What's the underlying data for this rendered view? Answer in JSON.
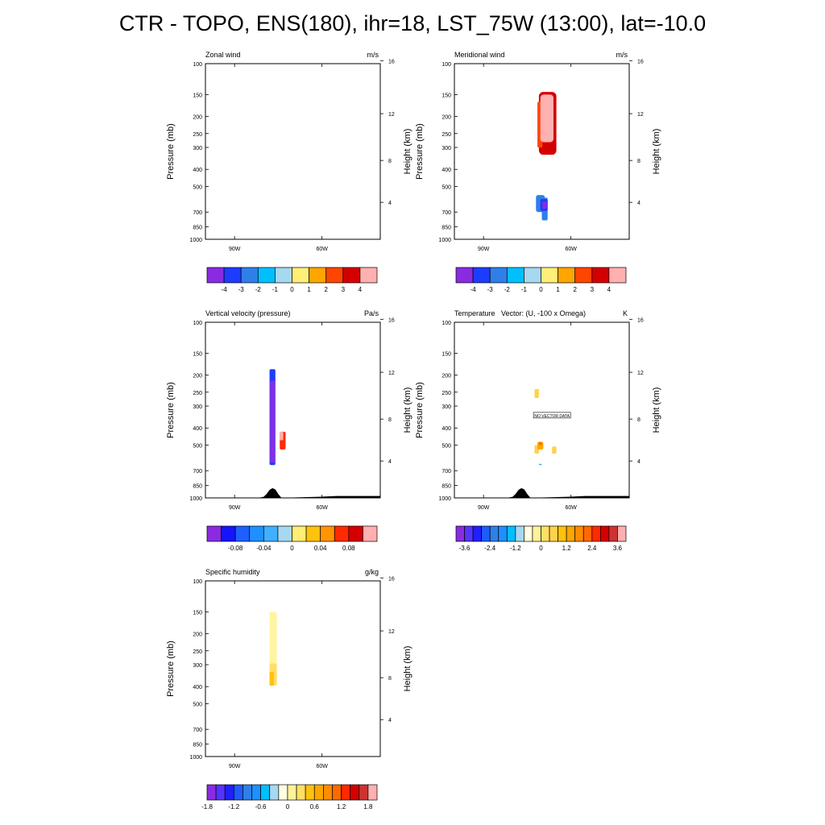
{
  "title": "CTR - TOPO, ENS(180), ihr=18, LST_75W (13:00), lat=-10.0",
  "axes": {
    "ylabel_left": "Pressure (mb)",
    "ylabel_right": "Height (km)",
    "pressure_ticks": [
      "100",
      "150",
      "200",
      "250",
      "300",
      "400",
      "500",
      "700",
      "850",
      "1000"
    ],
    "height_ticks": [
      "16",
      "12",
      "8",
      "4"
    ],
    "lon_ticks": [
      "90W",
      "60W"
    ]
  },
  "chart_data": [
    {
      "type": "heatmap",
      "title": "Zonal wind",
      "units": "m/s",
      "panel": 0,
      "blobs": [],
      "colorbar": {
        "colors": [
          "#8a2be2",
          "#1e3cff",
          "#2f7fe8",
          "#00bfff",
          "#a6d8f0",
          "#ffee77",
          "#ffa500",
          "#ff4500",
          "#d40000",
          "#ffb0b0"
        ],
        "labels": [
          "-4",
          "-3",
          "-2",
          "-1",
          "0",
          "1",
          "2",
          "3",
          "4"
        ],
        "label_mode": "interior"
      }
    },
    {
      "type": "heatmap",
      "title": "Meridional wind",
      "units": "m/s",
      "panel": 1,
      "blobs": [
        {
          "x": [
            -71,
            -65
          ],
          "p": [
            145,
            330
          ],
          "color": "#d40000"
        },
        {
          "x": [
            -71.5,
            -69.8
          ],
          "p": [
            165,
            300
          ],
          "color": "#ff4500"
        },
        {
          "x": [
            -70.5,
            -66
          ],
          "p": [
            150,
            280
          ],
          "color": "#ffb0b0"
        },
        {
          "x": [
            -72,
            -69
          ],
          "p": [
            560,
            700
          ],
          "color": "#2f7fe8"
        },
        {
          "x": [
            -70,
            -68
          ],
          "p": [
            580,
            780
          ],
          "color": "#2f7fe8"
        },
        {
          "x": [
            -70.5,
            -68
          ],
          "p": [
            590,
            690
          ],
          "color": "#1e3cff"
        },
        {
          "x": [
            -69.8,
            -68.3
          ],
          "p": [
            610,
            670
          ],
          "color": "#8a2be2"
        }
      ],
      "colorbar": {
        "colors": [
          "#8a2be2",
          "#1e3cff",
          "#2f7fe8",
          "#00bfff",
          "#a6d8f0",
          "#ffee77",
          "#ffa500",
          "#ff4500",
          "#d40000",
          "#ffb0b0"
        ],
        "labels": [
          "-4",
          "-3",
          "-2",
          "-1",
          "0",
          "1",
          "2",
          "3",
          "4"
        ],
        "label_mode": "interior"
      }
    },
    {
      "type": "heatmap",
      "title": "Vertical velocity (pressure)",
      "units": "Pa/s",
      "panel": 2,
      "blobs": [
        {
          "x": [
            -78,
            -76
          ],
          "p": [
            185,
            650
          ],
          "color": "#1e3cff"
        },
        {
          "x": [
            -77.8,
            -76.2
          ],
          "p": [
            215,
            630
          ],
          "color": "#8a2be2"
        },
        {
          "x": [
            -74.5,
            -72.5
          ],
          "p": [
            420,
            530
          ],
          "color": "#ff2a00"
        },
        {
          "x": [
            -74.5,
            -73.3
          ],
          "p": [
            420,
            470
          ],
          "color": "#ffb0b0"
        }
      ],
      "colorbar": {
        "colors": [
          "#8a2be2",
          "#1414ff",
          "#1e60ff",
          "#1e90ff",
          "#3fb0ff",
          "#a6d8f0",
          "#ffee77",
          "#ffc20e",
          "#ff9500",
          "#ff2a00",
          "#d40000",
          "#ffb0b0"
        ],
        "labels": [
          "-0.08",
          "-0.04",
          "0",
          "0.04",
          "0.08"
        ],
        "label_mode": "every_other"
      }
    },
    {
      "type": "heatmap",
      "title": "Temperature",
      "title_extra": "Vector: (U, -100 x Omega)",
      "units": "K",
      "panel": 3,
      "message": "NO VECTOR DATA",
      "blobs": [
        {
          "x": [
            -72.5,
            -71
          ],
          "p": [
            240,
            270
          ],
          "color": "#ffd24d"
        },
        {
          "x": [
            -72.5,
            -71
          ],
          "p": [
            500,
            560
          ],
          "color": "#ffd24d"
        },
        {
          "x": [
            -71.5,
            -69.5
          ],
          "p": [
            480,
            530
          ],
          "color": "#ffa500"
        },
        {
          "x": [
            -71,
            -70
          ],
          "p": [
            480,
            500
          ],
          "color": "#ff6a00"
        },
        {
          "x": [
            -66.5,
            -65
          ],
          "p": [
            510,
            560
          ],
          "color": "#ffd24d"
        },
        {
          "x": [
            -71,
            -70
          ],
          "p": [
            640,
            650
          ],
          "color": "#3fb0ff"
        }
      ],
      "colorbar": {
        "colors": [
          "#8a2be2",
          "#5533ff",
          "#2020ff",
          "#1e5cff",
          "#2f7fe8",
          "#1e90ff",
          "#00bfff",
          "#a6d8f0",
          "#ffffe0",
          "#fff299",
          "#ffe066",
          "#ffd24d",
          "#ffc20e",
          "#ffa500",
          "#ff8c00",
          "#ff6a00",
          "#ff2a00",
          "#d40000",
          "#cc3333",
          "#ffb0b0"
        ],
        "labels": [
          "-3.6",
          "-2.4",
          "-1.2",
          "0",
          "1.2",
          "2.4",
          "3.6"
        ],
        "label_mode": "every_third"
      }
    },
    {
      "type": "heatmap",
      "title": "Specific humidity",
      "units": "g/kg",
      "panel": 4,
      "blobs": [
        {
          "x": [
            -78,
            -75.5
          ],
          "p": [
            150,
            395
          ],
          "color": "#fff5a0"
        },
        {
          "x": [
            -78,
            -75.5
          ],
          "p": [
            295,
            395
          ],
          "color": "#ffe066"
        },
        {
          "x": [
            -78,
            -76.5
          ],
          "p": [
            330,
            395
          ],
          "color": "#ffc20e"
        }
      ],
      "colorbar": {
        "colors": [
          "#8a2be2",
          "#5533ff",
          "#2020ff",
          "#1e5cff",
          "#2f7fe8",
          "#1e90ff",
          "#00bfff",
          "#a6d8f0",
          "#ffffe0",
          "#fff299",
          "#ffe066",
          "#ffc20e",
          "#ffa500",
          "#ff8c00",
          "#ff6a00",
          "#ff2a00",
          "#d40000",
          "#cc3333",
          "#ffb0b0"
        ],
        "labels": [
          "-1.8",
          "-1.2",
          "-0.6",
          "0",
          "0.6",
          "1.2",
          "1.8"
        ],
        "label_mode": "every_third"
      }
    }
  ],
  "terrain": [
    [
      -100,
      1000
    ],
    [
      -82,
      1000
    ],
    [
      -80,
      985
    ],
    [
      -79,
      950
    ],
    [
      -78,
      900
    ],
    [
      -77,
      880
    ],
    [
      -76,
      895
    ],
    [
      -75,
      950
    ],
    [
      -74,
      995
    ],
    [
      -70,
      995
    ],
    [
      -65,
      990
    ],
    [
      -61,
      985
    ],
    [
      -55,
      975
    ],
    [
      -50,
      975
    ],
    [
      -40,
      975
    ]
  ]
}
